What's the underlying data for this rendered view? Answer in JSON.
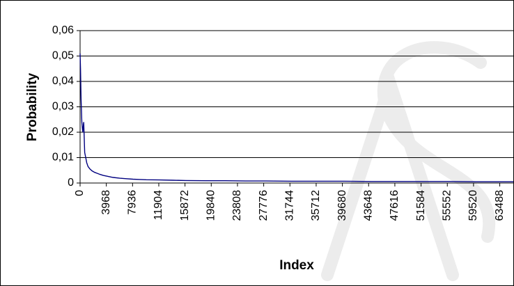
{
  "chart_data": {
    "type": "line",
    "title": "",
    "xlabel": "Index",
    "ylabel": "Probability",
    "xlim": [
      0,
      65536
    ],
    "ylim": [
      0,
      0.06
    ],
    "grid": "horizontal",
    "legend": "none",
    "x_ticks": [
      "0",
      "3968",
      "7936",
      "11904",
      "15872",
      "19840",
      "23808",
      "27776",
      "31744",
      "35712",
      "39680",
      "43648",
      "47616",
      "51584",
      "55552",
      "59520",
      "63488"
    ],
    "y_ticks": [
      "0",
      "0,01",
      "0,02",
      "0,03",
      "0,04",
      "0,05",
      "0,06"
    ],
    "series": [
      {
        "color": "#000080",
        "x": [
          0,
          60,
          150,
          260,
          400,
          550,
          700,
          850,
          1000,
          1200,
          1500,
          1800,
          2200,
          2600,
          3000,
          3500,
          4000,
          5000,
          6000,
          7000,
          8000,
          9000,
          10000,
          12000,
          14000,
          16000,
          19000,
          22000,
          25000,
          28000,
          32000,
          36000,
          40000,
          44000,
          48000,
          52000,
          56000,
          60000,
          64000,
          65536
        ],
        "y": [
          0.051,
          0.045,
          0.033,
          0.024,
          0.02,
          0.024,
          0.012,
          0.01,
          0.008,
          0.0065,
          0.0055,
          0.0048,
          0.0042,
          0.0038,
          0.0034,
          0.003,
          0.0027,
          0.0022,
          0.0019,
          0.0017,
          0.0015,
          0.0014,
          0.0013,
          0.0012,
          0.0011,
          0.001,
          0.0009,
          0.0009,
          0.0008,
          0.0008,
          0.0007,
          0.0007,
          0.0007,
          0.0006,
          0.0006,
          0.0006,
          0.0006,
          0.0005,
          0.0005,
          0.0005
        ]
      }
    ]
  }
}
